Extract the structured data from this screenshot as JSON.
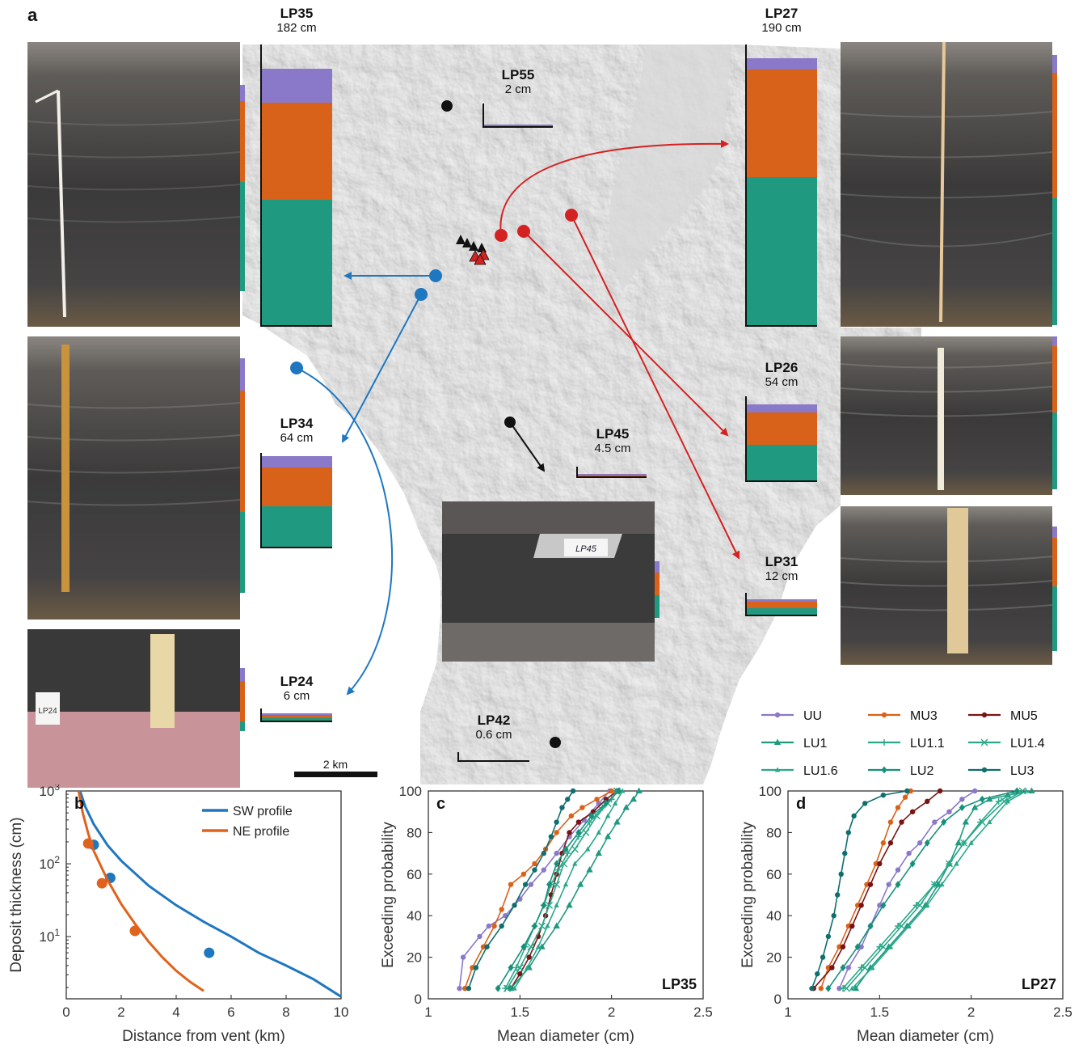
{
  "panel_letters": {
    "a": "a",
    "b": "b",
    "c": "c",
    "d": "d"
  },
  "colors": {
    "UU": "#8a78c8",
    "MU3": "#d9621a",
    "MU5": "#7a1414",
    "LU1": "#1f9a80",
    "LU1.1": "#2aa88a",
    "LU1.4": "#2aa88a",
    "LU1.6": "#2aa88a",
    "LU2": "#17907a",
    "LU3": "#0f6e6e",
    "SW": "#1f77c0",
    "NE": "#e0621c",
    "red_arrow": "#d42222",
    "blue_arrow": "#1f77c0"
  },
  "sites": {
    "LP35": {
      "name": "LP35",
      "thickness": "182 cm"
    },
    "LP27": {
      "name": "LP27",
      "thickness": "190 cm"
    },
    "LP55": {
      "name": "LP55",
      "thickness": "2 cm"
    },
    "LP26": {
      "name": "LP26",
      "thickness": "54 cm"
    },
    "LP34": {
      "name": "LP34",
      "thickness": "64 cm"
    },
    "LP45": {
      "name": "LP45",
      "thickness": "4.5 cm"
    },
    "LP31": {
      "name": "LP31",
      "thickness": "12 cm"
    },
    "LP24": {
      "name": "LP24",
      "thickness": "6 cm"
    },
    "LP42": {
      "name": "LP42",
      "thickness": "0.6 cm"
    }
  },
  "photo_tags": {
    "lp45_tag": "LP45",
    "lp24_tag": "LP24"
  },
  "scale_bar": "2 km",
  "legend": [
    {
      "key": "UU",
      "label": "UU",
      "marker": "circle"
    },
    {
      "key": "MU3",
      "label": "MU3",
      "marker": "circle"
    },
    {
      "key": "MU5",
      "label": "MU5",
      "marker": "circle"
    },
    {
      "key": "LU1",
      "label": "LU1",
      "marker": "triangle"
    },
    {
      "key": "LU1.1",
      "label": "LU1.1",
      "marker": "plus"
    },
    {
      "key": "LU1.4",
      "label": "LU1.4",
      "marker": "x"
    },
    {
      "key": "LU1.6",
      "label": "LU1.6",
      "marker": "smalltri"
    },
    {
      "key": "LU2",
      "label": "LU2",
      "marker": "diamond"
    },
    {
      "key": "LU3",
      "label": "LU3",
      "marker": "circle"
    }
  ],
  "chart_data": [
    {
      "id": "b",
      "type": "line",
      "xlabel": "Distance from vent (km)",
      "ylabel": "Deposit thickness (cm)",
      "xlim": [
        0,
        10
      ],
      "ylim": [
        1.4,
        1000
      ],
      "yscale": "log",
      "xticks": [
        "0",
        "2",
        "4",
        "6",
        "8",
        "10"
      ],
      "yticks": [
        "10^1",
        "10^2",
        "10^3"
      ],
      "legend_position": "top-right",
      "series": [
        {
          "name": "SW profile",
          "color_key": "SW",
          "curve": [
            [
              0.5,
              1000
            ],
            [
              0.7,
              600
            ],
            [
              1,
              350
            ],
            [
              1.5,
              180
            ],
            [
              2,
              110
            ],
            [
              3,
              50
            ],
            [
              4,
              27
            ],
            [
              5,
              16
            ],
            [
              6,
              10
            ],
            [
              7,
              6
            ],
            [
              8,
              4
            ],
            [
              9,
              2.6
            ],
            [
              10,
              1.5
            ]
          ],
          "points": [
            [
              1.0,
              182
            ],
            [
              1.6,
              64
            ],
            [
              5.2,
              6
            ]
          ]
        },
        {
          "name": "NE profile",
          "color_key": "NE",
          "curve": [
            [
              0.45,
              1000
            ],
            [
              0.6,
              500
            ],
            [
              0.8,
              260
            ],
            [
              1,
              150
            ],
            [
              1.5,
              60
            ],
            [
              2,
              28
            ],
            [
              2.5,
              15
            ],
            [
              3,
              8.5
            ],
            [
              3.5,
              5.2
            ],
            [
              4,
              3.4
            ],
            [
              4.5,
              2.4
            ],
            [
              5,
              1.8
            ]
          ],
          "points": [
            [
              0.8,
              190
            ],
            [
              1.3,
              54
            ],
            [
              2.5,
              12
            ]
          ]
        }
      ]
    },
    {
      "id": "c",
      "type": "line",
      "site_label": "LP35",
      "xlabel": "Mean diameter (cm)",
      "ylabel": "Exceeding probability",
      "xlim": [
        1,
        2.5
      ],
      "ylim": [
        0,
        100
      ],
      "xticks": [
        "1",
        "1.5",
        "2",
        "2.5"
      ],
      "yticks": [
        "0",
        "20",
        "40",
        "60",
        "80",
        "100"
      ],
      "series": [
        {
          "key": "UU",
          "x": [
            1.17,
            1.19,
            1.28,
            1.33,
            1.42,
            1.5,
            1.56,
            1.63,
            1.7,
            1.77,
            1.85,
            1.93,
            1.99
          ],
          "y": [
            5,
            20,
            30,
            35,
            40,
            48,
            55,
            62,
            70,
            78,
            86,
            94,
            100
          ]
        },
        {
          "key": "MU3",
          "x": [
            1.2,
            1.24,
            1.3,
            1.36,
            1.4,
            1.45,
            1.52,
            1.58,
            1.64,
            1.7,
            1.78,
            1.84,
            1.92,
            2.0
          ],
          "y": [
            5,
            15,
            25,
            35,
            43,
            55,
            60,
            65,
            72,
            80,
            88,
            92,
            96,
            100
          ]
        },
        {
          "key": "MU5",
          "x": [
            1.45,
            1.5,
            1.55,
            1.6,
            1.64,
            1.67,
            1.7,
            1.73,
            1.77,
            1.82,
            1.9,
            1.97,
            2.03
          ],
          "y": [
            5,
            12,
            20,
            30,
            40,
            50,
            60,
            70,
            80,
            85,
            90,
            96,
            100
          ]
        },
        {
          "key": "LU1",
          "x": [
            1.45,
            1.55,
            1.62,
            1.7,
            1.77,
            1.83,
            1.88,
            1.93,
            1.98,
            2.03,
            2.08,
            2.12,
            2.15
          ],
          "y": [
            5,
            15,
            25,
            35,
            45,
            55,
            62,
            70,
            78,
            85,
            92,
            96,
            100
          ]
        },
        {
          "key": "LU1.1",
          "x": [
            1.42,
            1.48,
            1.53,
            1.58,
            1.63,
            1.67,
            1.71,
            1.76,
            1.82,
            1.88,
            1.95,
            2.0,
            2.03
          ],
          "y": [
            5,
            15,
            25,
            35,
            45,
            55,
            62,
            70,
            78,
            85,
            92,
            96,
            100
          ]
        },
        {
          "key": "LU1.4",
          "x": [
            1.43,
            1.5,
            1.56,
            1.62,
            1.66,
            1.7,
            1.74,
            1.8,
            1.86,
            1.92,
            1.98,
            2.03
          ],
          "y": [
            5,
            15,
            25,
            35,
            45,
            55,
            65,
            72,
            80,
            88,
            94,
            100
          ]
        },
        {
          "key": "LU1.6",
          "x": [
            1.47,
            1.54,
            1.6,
            1.65,
            1.7,
            1.75,
            1.8,
            1.87,
            1.93,
            1.98,
            2.02,
            2.06
          ],
          "y": [
            5,
            15,
            25,
            35,
            45,
            55,
            65,
            72,
            80,
            88,
            94,
            100
          ]
        },
        {
          "key": "LU2",
          "x": [
            1.38,
            1.45,
            1.52,
            1.58,
            1.63,
            1.66,
            1.7,
            1.75,
            1.82,
            1.89,
            1.97,
            2.04
          ],
          "y": [
            5,
            15,
            25,
            35,
            45,
            55,
            65,
            72,
            80,
            88,
            94,
            100
          ]
        },
        {
          "key": "LU3",
          "x": [
            1.22,
            1.26,
            1.32,
            1.4,
            1.47,
            1.53,
            1.58,
            1.63,
            1.67,
            1.7,
            1.73,
            1.76,
            1.79
          ],
          "y": [
            5,
            15,
            25,
            35,
            45,
            55,
            62,
            70,
            78,
            85,
            92,
            96,
            100
          ]
        }
      ]
    },
    {
      "id": "d",
      "type": "line",
      "site_label": "LP27",
      "xlabel": "Mean diameter (cm)",
      "ylabel": "Exceeding probability",
      "xlim": [
        1,
        2.5
      ],
      "ylim": [
        0,
        100
      ],
      "xticks": [
        "1",
        "1.5",
        "2",
        "2.5"
      ],
      "yticks": [
        "0",
        "20",
        "40",
        "60",
        "80",
        "100"
      ],
      "series": [
        {
          "key": "UU",
          "x": [
            1.28,
            1.33,
            1.4,
            1.45,
            1.5,
            1.55,
            1.6,
            1.66,
            1.72,
            1.8,
            1.88,
            1.95,
            2.02
          ],
          "y": [
            5,
            15,
            25,
            35,
            45,
            55,
            62,
            70,
            75,
            85,
            90,
            96,
            100
          ]
        },
        {
          "key": "MU3",
          "x": [
            1.18,
            1.22,
            1.28,
            1.33,
            1.38,
            1.43,
            1.48,
            1.52,
            1.56,
            1.6,
            1.64,
            1.67
          ],
          "y": [
            5,
            15,
            25,
            35,
            45,
            55,
            65,
            75,
            85,
            92,
            97,
            100
          ]
        },
        {
          "key": "MU5",
          "x": [
            1.14,
            1.24,
            1.3,
            1.35,
            1.4,
            1.45,
            1.5,
            1.56,
            1.62,
            1.68,
            1.76,
            1.83
          ],
          "y": [
            5,
            15,
            25,
            35,
            45,
            55,
            65,
            75,
            85,
            90,
            95,
            100
          ]
        },
        {
          "key": "LU1",
          "x": [
            1.37,
            1.45,
            1.55,
            1.65,
            1.75,
            1.82,
            1.88,
            1.93,
            1.97,
            2.02,
            2.1,
            2.2,
            2.33
          ],
          "y": [
            5,
            15,
            25,
            35,
            45,
            55,
            65,
            75,
            85,
            92,
            96,
            98,
            100
          ]
        },
        {
          "key": "LU1.1",
          "x": [
            1.3,
            1.4,
            1.5,
            1.6,
            1.7,
            1.8,
            1.88,
            1.96,
            2.05,
            2.15,
            2.25
          ],
          "y": [
            5,
            15,
            25,
            35,
            45,
            55,
            65,
            75,
            85,
            95,
            100
          ]
        },
        {
          "key": "LU1.4",
          "x": [
            1.32,
            1.42,
            1.52,
            1.62,
            1.72,
            1.8,
            1.88,
            1.96,
            2.06,
            2.18,
            2.28
          ],
          "y": [
            5,
            15,
            25,
            35,
            45,
            55,
            65,
            75,
            85,
            95,
            100
          ]
        },
        {
          "key": "LU1.6",
          "x": [
            1.35,
            1.46,
            1.56,
            1.66,
            1.76,
            1.84,
            1.92,
            2.0,
            2.1,
            2.2,
            2.3
          ],
          "y": [
            5,
            15,
            25,
            35,
            45,
            55,
            65,
            75,
            85,
            95,
            100
          ]
        },
        {
          "key": "LU2",
          "x": [
            1.22,
            1.3,
            1.38,
            1.45,
            1.52,
            1.6,
            1.68,
            1.76,
            1.85,
            1.95,
            2.06,
            2.25
          ],
          "y": [
            5,
            15,
            25,
            35,
            45,
            55,
            65,
            75,
            85,
            92,
            96,
            100
          ]
        },
        {
          "key": "LU3",
          "x": [
            1.13,
            1.16,
            1.19,
            1.22,
            1.25,
            1.27,
            1.29,
            1.31,
            1.33,
            1.36,
            1.42,
            1.52,
            1.65
          ],
          "y": [
            5,
            12,
            20,
            30,
            40,
            50,
            60,
            70,
            80,
            88,
            94,
            98,
            100
          ]
        }
      ]
    }
  ]
}
